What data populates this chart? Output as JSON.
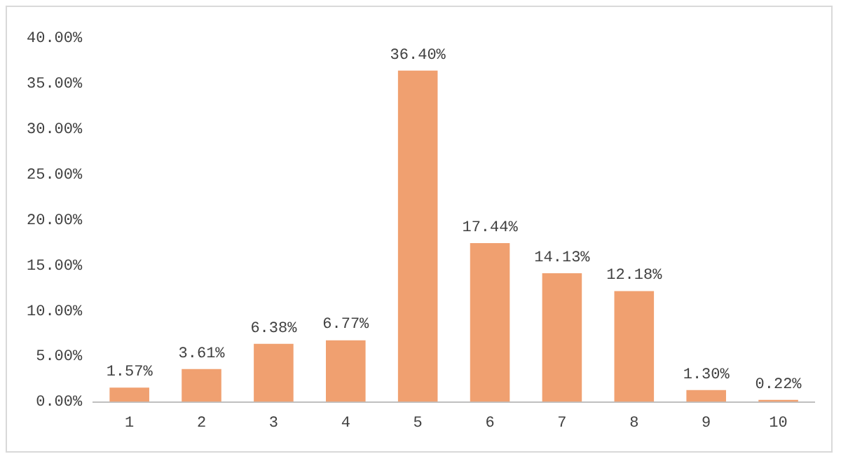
{
  "chart_data": {
    "type": "bar",
    "categories": [
      "1",
      "2",
      "3",
      "4",
      "5",
      "6",
      "7",
      "8",
      "9",
      "10"
    ],
    "values": [
      1.57,
      3.61,
      6.38,
      6.77,
      36.4,
      17.44,
      14.13,
      12.18,
      1.3,
      0.22
    ],
    "value_labels": [
      "1.57%",
      "3.61%",
      "6.38%",
      "6.77%",
      "36.40%",
      "17.44%",
      "14.13%",
      "12.18%",
      "1.30%",
      "0.22%"
    ],
    "color": "#f0a070",
    "ylim": [
      0,
      40
    ],
    "yticks": [
      {
        "value": 0,
        "label": "0.00%"
      },
      {
        "value": 5,
        "label": "5.00%"
      },
      {
        "value": 10,
        "label": "10.00%"
      },
      {
        "value": 15,
        "label": "15.00%"
      },
      {
        "value": 20,
        "label": "20.00%"
      },
      {
        "value": 25,
        "label": "25.00%"
      },
      {
        "value": 30,
        "label": "30.00%"
      },
      {
        "value": 35,
        "label": "35.00%"
      },
      {
        "value": 40,
        "label": "40.00%"
      }
    ],
    "grid": false,
    "legend": false
  }
}
